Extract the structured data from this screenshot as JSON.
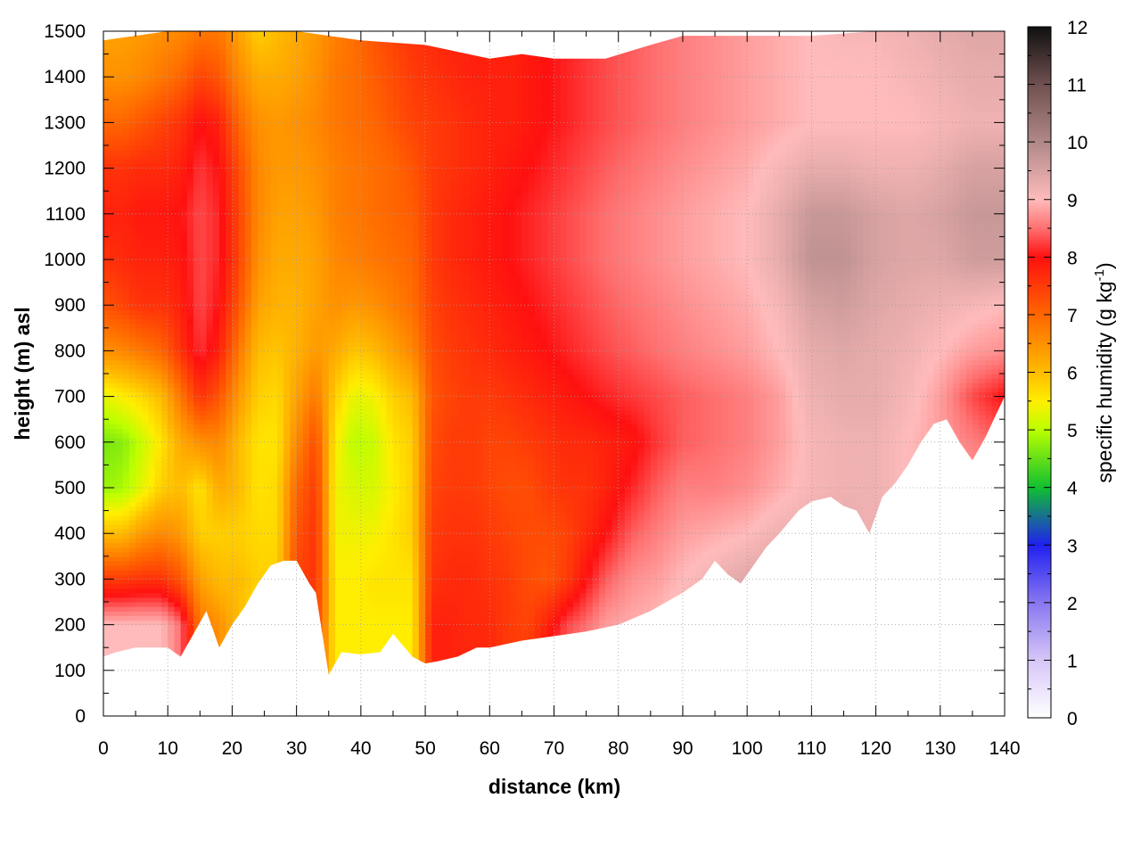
{
  "chart_data": {
    "type": "heatmap",
    "xlabel": "distance (km)",
    "ylabel": "height (m) asl",
    "xlim": [
      0,
      140
    ],
    "ylim": [
      0,
      1500
    ],
    "xticks": [
      "0",
      "10",
      "20",
      "30",
      "40",
      "50",
      "60",
      "70",
      "80",
      "90",
      "100",
      "110",
      "120",
      "130",
      "140"
    ],
    "yticks": [
      "0",
      "100",
      "200",
      "300",
      "400",
      "500",
      "600",
      "700",
      "800",
      "900",
      "1000",
      "1100",
      "1200",
      "1300",
      "1400",
      "1500"
    ],
    "grid": true,
    "colorbar": {
      "label_main": "specific humidity (g kg",
      "label_sup": "-1",
      "label_end": ")",
      "range": [
        0,
        12
      ],
      "ticks": [
        "0",
        "1",
        "2",
        "3",
        "4",
        "5",
        "6",
        "7",
        "8",
        "9",
        "10",
        "11",
        "12"
      ],
      "colors": [
        {
          "v": 0,
          "c": "#ffffff"
        },
        {
          "v": 1,
          "c": "#d6c6f7"
        },
        {
          "v": 2,
          "c": "#8877f0"
        },
        {
          "v": 3,
          "c": "#2020f0"
        },
        {
          "v": 4,
          "c": "#10c030"
        },
        {
          "v": 5,
          "c": "#bbff00"
        },
        {
          "v": 5.5,
          "c": "#ffee00"
        },
        {
          "v": 6,
          "c": "#ffbb00"
        },
        {
          "v": 7,
          "c": "#ff6600"
        },
        {
          "v": 8,
          "c": "#ff1010"
        },
        {
          "v": 8.5,
          "c": "#ff7070"
        },
        {
          "v": 9,
          "c": "#ffbbbb"
        },
        {
          "v": 10,
          "c": "#b08888"
        },
        {
          "v": 11,
          "c": "#705050"
        },
        {
          "v": 12,
          "c": "#101010"
        }
      ]
    },
    "terrain_profile": {
      "x": [
        0,
        2,
        5,
        8,
        10,
        12,
        14,
        16,
        18,
        20,
        22,
        24,
        26,
        28,
        30,
        32,
        33,
        35,
        37,
        40,
        43,
        45,
        48,
        50,
        52,
        55,
        58,
        60,
        65,
        70,
        75,
        80,
        85,
        90,
        93,
        95,
        97,
        99,
        101,
        103,
        105,
        108,
        110,
        113,
        115,
        117,
        119,
        121,
        123,
        125,
        127,
        129,
        131,
        133,
        135,
        137,
        140
      ],
      "y": [
        130,
        140,
        150,
        150,
        150,
        130,
        180,
        230,
        150,
        200,
        240,
        290,
        330,
        340,
        340,
        290,
        270,
        90,
        140,
        135,
        140,
        180,
        130,
        115,
        120,
        130,
        150,
        150,
        165,
        175,
        185,
        200,
        230,
        270,
        300,
        340,
        310,
        290,
        330,
        370,
        400,
        450,
        470,
        480,
        460,
        450,
        400,
        480,
        510,
        550,
        600,
        640,
        650,
        600,
        560,
        610,
        700
      ]
    },
    "upper_boundary": {
      "x": [
        0,
        10,
        20,
        30,
        40,
        50,
        60,
        65,
        70,
        78,
        85,
        90,
        100,
        110,
        120,
        130,
        140
      ],
      "y": [
        1480,
        1500,
        1500,
        1500,
        1480,
        1470,
        1440,
        1450,
        1440,
        1440,
        1470,
        1490,
        1490,
        1490,
        1500,
        1500,
        1500
      ]
    },
    "humidity_field": {
      "columns_x": [
        0,
        3,
        6,
        9,
        12,
        15,
        18,
        21,
        24,
        27,
        30,
        33,
        36,
        39,
        42,
        45,
        48,
        51,
        54,
        57,
        60,
        63,
        66,
        69,
        72,
        75,
        78,
        82,
        86,
        90,
        95,
        100,
        105,
        110,
        115,
        120,
        125,
        130,
        135,
        140
      ],
      "levels_y": [
        100,
        200,
        300,
        400,
        500,
        600,
        700,
        800,
        900,
        1000,
        1100,
        1200,
        1300,
        1400,
        1500
      ],
      "values": [
        [
          9.0,
          9.0,
          9.0,
          9.0,
          8.5,
          7.0,
          6.5,
          6.0,
          5.5,
          5.5,
          7.5,
          7.5,
          5.5,
          5.5,
          5.5,
          5.5,
          5.5,
          7.8,
          7.8,
          7.8,
          7.8,
          7.5,
          7.5,
          8.2,
          8.5,
          8.8,
          9.0,
          9.0,
          9.0,
          9.0,
          9.0,
          9.0,
          9.0,
          9.0,
          9.0,
          9.0,
          9.0,
          9.0,
          9.0,
          9.0
        ],
        [
          9.0,
          9.0,
          9.0,
          9.0,
          8.5,
          6.8,
          6.5,
          6.0,
          5.5,
          5.5,
          7.5,
          7.5,
          5.5,
          5.5,
          5.5,
          5.5,
          5.5,
          7.8,
          7.8,
          7.7,
          7.7,
          7.5,
          7.4,
          7.8,
          8.3,
          8.5,
          8.8,
          8.9,
          9.0,
          9.2,
          9.3,
          9.5,
          9.5,
          9.3,
          9.3,
          9.2,
          9.2,
          9.2,
          9.2,
          9.2
        ],
        [
          7.5,
          7.5,
          7.6,
          7.6,
          7.2,
          6.3,
          6.0,
          6.0,
          5.8,
          5.8,
          7.4,
          7.6,
          5.5,
          5.5,
          5.6,
          5.6,
          5.6,
          7.6,
          7.7,
          7.7,
          7.6,
          7.5,
          7.3,
          7.2,
          7.5,
          8.0,
          8.4,
          8.7,
          8.8,
          9.0,
          9.2,
          9.4,
          9.5,
          9.3,
          9.3,
          9.2,
          9.2,
          9.2,
          9.2,
          9.2
        ],
        [
          6.0,
          6.0,
          6.4,
          6.6,
          6.4,
          5.8,
          5.8,
          5.8,
          5.7,
          5.7,
          7.2,
          7.6,
          5.4,
          5.4,
          5.4,
          5.6,
          5.8,
          7.5,
          7.6,
          7.6,
          7.5,
          7.4,
          7.3,
          7.3,
          7.4,
          7.7,
          8.0,
          8.4,
          8.6,
          8.8,
          8.9,
          9.0,
          9.2,
          9.3,
          9.3,
          9.2,
          9.1,
          9.0,
          9.0,
          9.0
        ],
        [
          4.8,
          4.9,
          5.3,
          5.8,
          6.0,
          5.6,
          6.2,
          6.0,
          5.6,
          5.7,
          7.0,
          7.5,
          5.4,
          5.2,
          5.2,
          5.5,
          5.8,
          7.4,
          7.5,
          7.5,
          7.4,
          7.3,
          7.3,
          7.5,
          7.6,
          7.6,
          7.8,
          8.1,
          8.4,
          8.6,
          8.6,
          8.7,
          8.9,
          9.1,
          9.2,
          9.2,
          9.0,
          8.9,
          8.8,
          8.7
        ],
        [
          4.6,
          4.7,
          5.1,
          5.6,
          6.2,
          6.5,
          6.6,
          6.0,
          5.6,
          5.6,
          6.6,
          7.3,
          5.5,
          5.0,
          5.1,
          5.6,
          5.8,
          7.3,
          7.5,
          7.5,
          7.4,
          7.4,
          7.5,
          7.6,
          7.7,
          7.7,
          7.8,
          7.9,
          8.2,
          8.4,
          8.5,
          8.6,
          8.8,
          9.1,
          9.2,
          9.2,
          9.0,
          8.8,
          8.6,
          8.4
        ],
        [
          5.3,
          5.5,
          5.7,
          6.0,
          6.8,
          7.6,
          7.2,
          6.4,
          5.8,
          5.7,
          6.3,
          6.8,
          5.8,
          5.3,
          5.4,
          5.8,
          6.0,
          7.2,
          7.4,
          7.5,
          7.5,
          7.6,
          7.7,
          7.8,
          7.9,
          8.0,
          8.1,
          8.2,
          8.3,
          8.4,
          8.5,
          8.6,
          8.8,
          9.2,
          9.3,
          9.3,
          9.1,
          8.8,
          8.3,
          8.0
        ],
        [
          6.5,
          6.6,
          6.8,
          7.0,
          7.6,
          8.2,
          7.8,
          6.8,
          6.0,
          5.9,
          6.1,
          6.4,
          6.2,
          5.9,
          6.0,
          6.3,
          6.6,
          7.3,
          7.5,
          7.6,
          7.7,
          7.8,
          7.9,
          8.0,
          8.1,
          8.2,
          8.3,
          8.4,
          8.5,
          8.6,
          8.7,
          8.8,
          9.0,
          9.3,
          9.4,
          9.3,
          9.2,
          9.0,
          8.8,
          8.7
        ],
        [
          7.2,
          7.4,
          7.6,
          7.6,
          7.8,
          8.3,
          8.0,
          7.2,
          6.3,
          6.1,
          6.1,
          6.3,
          6.5,
          6.4,
          6.5,
          6.7,
          6.9,
          7.4,
          7.6,
          7.7,
          7.8,
          7.9,
          8.0,
          8.1,
          8.2,
          8.3,
          8.4,
          8.5,
          8.6,
          8.7,
          8.8,
          8.9,
          9.1,
          9.5,
          9.6,
          9.4,
          9.3,
          9.2,
          9.1,
          9.0
        ],
        [
          7.6,
          7.7,
          7.8,
          7.8,
          7.9,
          8.3,
          8.1,
          7.4,
          6.5,
          6.2,
          6.2,
          6.3,
          6.6,
          6.7,
          6.8,
          6.9,
          7.0,
          7.5,
          7.7,
          7.8,
          7.9,
          8.0,
          8.1,
          8.2,
          8.3,
          8.4,
          8.5,
          8.6,
          8.7,
          8.8,
          8.9,
          9.0,
          9.3,
          9.8,
          9.8,
          9.5,
          9.4,
          9.4,
          9.6,
          9.6
        ],
        [
          7.8,
          7.8,
          7.9,
          7.9,
          8.0,
          8.3,
          8.1,
          7.4,
          6.6,
          6.3,
          6.3,
          6.4,
          6.7,
          6.8,
          6.9,
          7.0,
          7.1,
          7.5,
          7.7,
          7.8,
          7.9,
          8.0,
          8.1,
          8.2,
          8.3,
          8.4,
          8.5,
          8.6,
          8.7,
          8.8,
          8.9,
          9.0,
          9.3,
          9.7,
          9.7,
          9.5,
          9.4,
          9.5,
          9.7,
          9.7
        ],
        [
          7.6,
          7.6,
          7.7,
          7.7,
          7.8,
          8.2,
          8.0,
          7.3,
          6.6,
          6.4,
          6.4,
          6.5,
          6.7,
          6.8,
          6.9,
          7.0,
          7.2,
          7.5,
          7.6,
          7.7,
          7.8,
          7.9,
          8.0,
          8.1,
          8.2,
          8.3,
          8.4,
          8.5,
          8.6,
          8.7,
          8.8,
          8.9,
          9.1,
          9.3,
          9.3,
          9.2,
          9.2,
          9.3,
          9.5,
          9.5
        ],
        [
          7.0,
          7.0,
          7.2,
          7.4,
          7.6,
          8.0,
          7.8,
          7.0,
          6.5,
          6.4,
          6.5,
          6.6,
          6.8,
          6.9,
          7.0,
          7.2,
          7.4,
          7.5,
          7.6,
          7.7,
          7.8,
          7.8,
          7.9,
          8.0,
          8.1,
          8.2,
          8.3,
          8.4,
          8.5,
          8.6,
          8.7,
          8.8,
          8.9,
          9.0,
          9.0,
          9.0,
          9.0,
          9.1,
          9.2,
          9.2
        ],
        [
          6.5,
          6.5,
          6.6,
          6.8,
          7.0,
          7.4,
          7.2,
          6.6,
          6.2,
          6.2,
          6.3,
          6.5,
          6.8,
          6.9,
          7.1,
          7.3,
          7.5,
          7.6,
          7.7,
          7.8,
          7.8,
          7.8,
          7.9,
          8.0,
          8.1,
          8.2,
          8.3,
          8.4,
          8.5,
          8.6,
          8.7,
          8.8,
          8.9,
          9.0,
          9.0,
          9.0,
          9.1,
          9.2,
          9.3,
          9.3
        ],
        [
          6.3,
          6.3,
          6.4,
          6.5,
          6.6,
          6.8,
          6.8,
          6.3,
          5.8,
          6.0,
          6.2,
          6.4,
          6.7,
          6.9,
          7.2,
          7.4,
          7.6,
          7.7,
          7.8,
          7.8,
          7.8,
          7.8,
          7.9,
          8.0,
          8.1,
          8.2,
          8.3,
          8.4,
          8.5,
          8.6,
          8.7,
          8.8,
          8.9,
          9.0,
          9.1,
          9.1,
          9.2,
          9.3,
          9.4,
          9.4
        ]
      ]
    }
  }
}
